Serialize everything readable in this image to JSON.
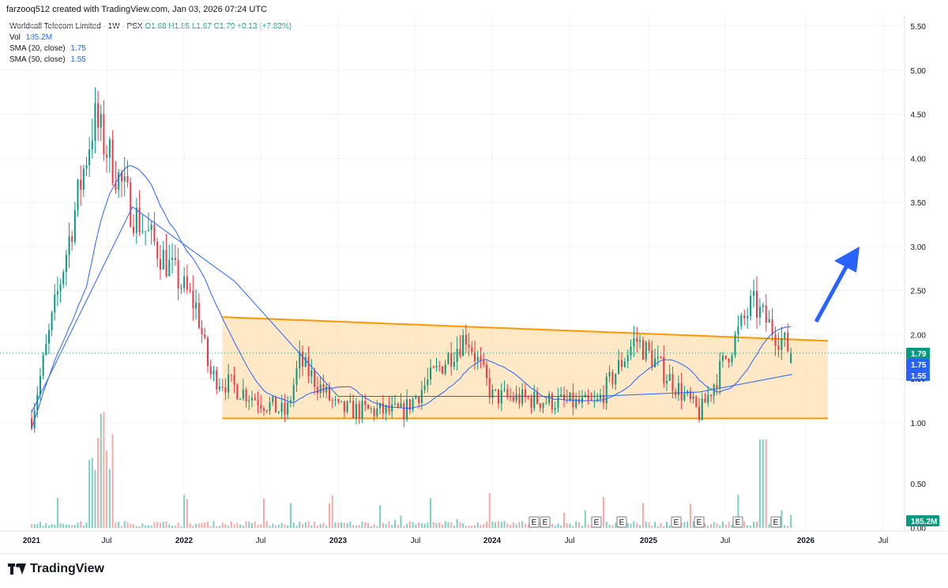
{
  "header": {
    "created_by": "farzooq512 created with TradingView.com, Jan 03, 2026 07:24 UTC"
  },
  "legend": {
    "title": "Worldcall Telecom Limited · 1W · PSX",
    "ohlc": "O1.68 H1.85 L1.67 C1.79 +0.13 (+7.83%)",
    "vol_label": "Vol",
    "vol_value": "185.2M",
    "sma20_label": "SMA (20, close)",
    "sma20_value": "1.75",
    "sma50_label": "SMA (50, close)",
    "sma50_value": "1.55"
  },
  "branding": {
    "name": "TradingView"
  },
  "colors": {
    "up": "#089981",
    "down": "#f23645",
    "sma": "#2962ff",
    "channel": "#ff9800",
    "channel_fill": "#ffe0b2",
    "arrow": "#2962ff",
    "vol_up": "#7ccfc2",
    "vol_down": "#f7a9a7"
  },
  "chart_data": {
    "type": "candlestick",
    "title": "Worldcall Telecom Limited · 1W · PSX",
    "y_axis": {
      "ticks": [
        "5.50",
        "5.00",
        "4.50",
        "4.00",
        "3.50",
        "3.00",
        "2.50",
        "2.00",
        "1.50",
        "1.00"
      ],
      "range": [
        0.9,
        5.6
      ]
    },
    "volume_axis": {
      "ticks": [
        "0.50",
        "0.00"
      ]
    },
    "x_axis": {
      "ticks": [
        "2021",
        "Jul",
        "2022",
        "Jul",
        "2023",
        "Jul",
        "2024",
        "Jul",
        "2025",
        "Jul",
        "2026",
        "Jul"
      ],
      "bold_ticks": [
        "2021",
        "2022",
        "2023",
        "2024",
        "2025",
        "2026"
      ]
    },
    "price_labels": {
      "last": "1.79",
      "sma20": "1.75",
      "sma50": "1.55",
      "volume": "185.2M"
    },
    "key_points": [
      {
        "date": "2021-01",
        "price": 1.05
      },
      {
        "date": "2021-06",
        "price": 4.45
      },
      {
        "date": "2021-09",
        "price": 3.4
      },
      {
        "date": "2022-02",
        "price": 2.3
      },
      {
        "date": "2022-03",
        "price": 1.55
      },
      {
        "date": "2022-09",
        "price": 1.1
      },
      {
        "date": "2022-10",
        "price": 1.7
      },
      {
        "date": "2023-01",
        "price": 1.15
      },
      {
        "date": "2023-06",
        "price": 1.12
      },
      {
        "date": "2023-11",
        "price": 2.0
      },
      {
        "date": "2024-01",
        "price": 1.3
      },
      {
        "date": "2024-09",
        "price": 1.2
      },
      {
        "date": "2024-12",
        "price": 1.95
      },
      {
        "date": "2025-05",
        "price": 1.1
      },
      {
        "date": "2025-09",
        "price": 2.35
      },
      {
        "date": "2025-12",
        "price": 1.79
      }
    ],
    "sma50_points": [
      {
        "date": "2021-01",
        "price": 1.12
      },
      {
        "date": "2021-09",
        "price": 3.45
      },
      {
        "date": "2022-05",
        "price": 2.6
      },
      {
        "date": "2023-01",
        "price": 1.3
      },
      {
        "date": "2024-01",
        "price": 1.3
      },
      {
        "date": "2024-09",
        "price": 1.3
      },
      {
        "date": "2025-05",
        "price": 1.35
      },
      {
        "date": "2025-12",
        "price": 1.55
      }
    ],
    "channel": {
      "upper": [
        {
          "date": "2022-04",
          "price": 2.2
        },
        {
          "date": "2026-01",
          "price": 1.93
        }
      ],
      "lower": [
        {
          "date": "2022-04",
          "price": 1.05
        },
        {
          "date": "2026-01",
          "price": 1.05
        }
      ]
    },
    "earnings_markers": 9,
    "volume_peak": {
      "date": "2021-06",
      "value": 1.4
    },
    "legend": [
      "SMA (20, close) 1.75",
      "SMA (50, close) 1.55"
    ],
    "grid": true
  }
}
